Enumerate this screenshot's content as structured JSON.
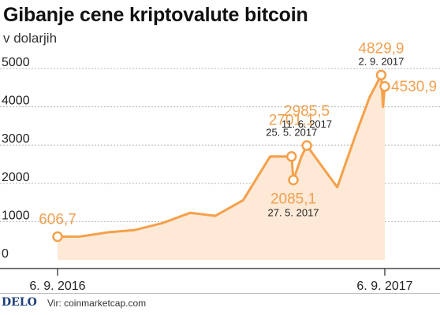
{
  "chart_data": {
    "type": "area",
    "title": "Gibanje cene kriptovalute bitcoin",
    "subtitle": "v dolarjih",
    "ylim": [
      0,
      5000
    ],
    "yticks": [
      "0",
      "1000",
      "2000",
      "3000",
      "4000",
      "5000"
    ],
    "xticks": [
      "6. 9. 2016",
      "6. 9. 2017"
    ],
    "grid": true,
    "color": "#f5a04a",
    "fill_color": "#fde9d6",
    "series": [
      {
        "x": [
          "2016-09-06",
          "2016-10-01",
          "2016-11-01",
          "2016-12-01",
          "2017-01-01",
          "2017-02-01",
          "2017-03-01",
          "2017-04-01",
          "2017-05-01",
          "2017-05-25",
          "2017-05-27",
          "2017-06-05",
          "2017-06-11",
          "2017-07-15",
          "2017-08-05",
          "2017-08-20",
          "2017-09-02",
          "2017-09-04",
          "2017-09-06"
        ],
        "values": [
          606.7,
          610,
          720,
          780,
          960,
          1230,
          1150,
          1560,
          2700,
          2701.1,
          2085.1,
          2700,
          2985.5,
          1900,
          3300,
          4250,
          4829.9,
          4000,
          4530.9
        ]
      }
    ],
    "annotations": [
      {
        "value": "606,7",
        "date": ""
      },
      {
        "value": "2701,1",
        "date": "25. 5. 2017"
      },
      {
        "value": "2085,1",
        "date": "27. 5. 2017"
      },
      {
        "value": "2985,5",
        "date": "11. 6. 2017"
      },
      {
        "value": "4829,9",
        "date": "2. 9. 2017"
      },
      {
        "value": "4530,9",
        "date": ""
      }
    ]
  },
  "footer": {
    "logo": "DELO",
    "source": "Vir: coinmarketcap.com"
  }
}
